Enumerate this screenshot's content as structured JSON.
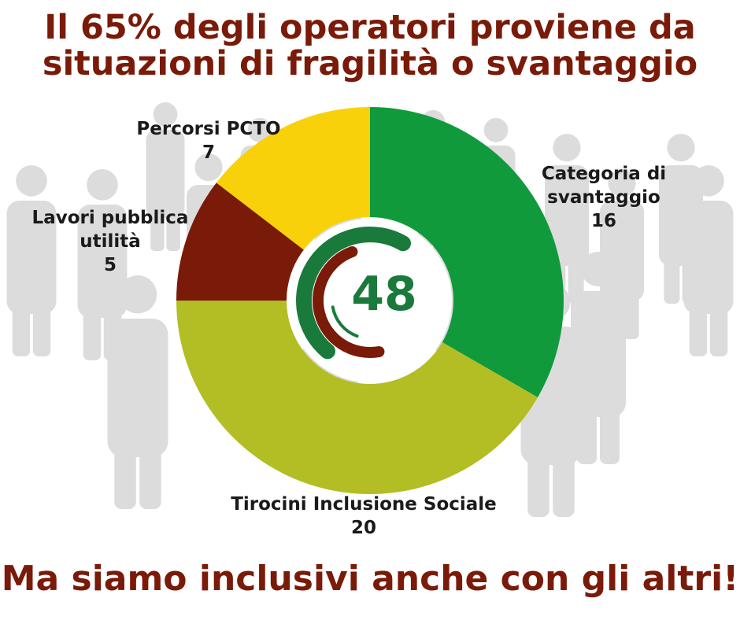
{
  "title_lines": [
    "Il 65% degli operatori proviene da",
    "situazioni di fragilità o svantaggio"
  ],
  "footer": "Ma siamo inclusivi anche con gli altri!",
  "colors": {
    "title": "#7a1a08",
    "background_people": "#dcdcdc",
    "logo_green": "#1a7a3c",
    "logo_red": "#7a1a08"
  },
  "chart_data": {
    "type": "pie",
    "donut": true,
    "center_label": "48",
    "slices": [
      {
        "name": "Categoria di svantaggio",
        "label_lines": [
          "Categoria di",
          "svantaggio"
        ],
        "value": 16,
        "value_label": "16",
        "color": "#109a3c"
      },
      {
        "name": "Tirocini Inclusione Sociale",
        "label_lines": [
          "Tirocini Inclusione Sociale"
        ],
        "value": 20,
        "value_label": "20",
        "color": "#b3bd24"
      },
      {
        "name": "Lavori pubblica utilità",
        "label_lines": [
          "Lavori pubblica",
          "utilità"
        ],
        "value": 5,
        "value_label": "5",
        "color": "#7a1a08"
      },
      {
        "name": "Percorsi PCTO",
        "label_lines": [
          "Percorsi PCTO"
        ],
        "value": 7,
        "value_label": "7",
        "color": "#f9d10a"
      }
    ]
  }
}
